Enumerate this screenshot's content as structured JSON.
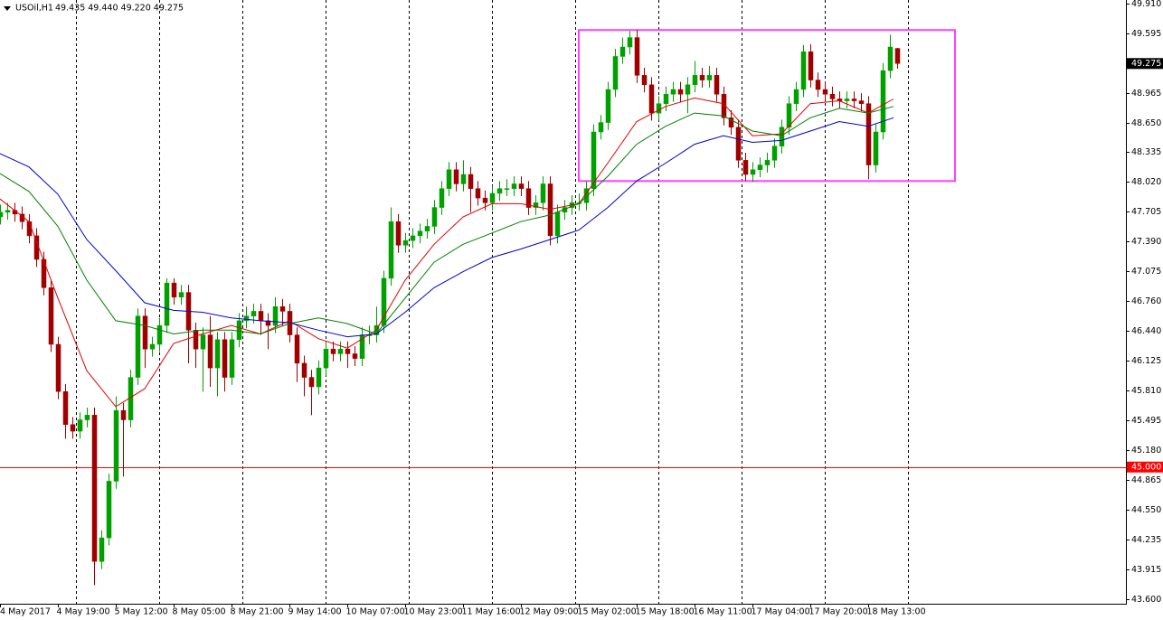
{
  "chart_data": {
    "type": "candlestick",
    "title": "USOil,H1",
    "ohlc_label": "49.435 49.440 49.220 49.275",
    "up_color": "#00a000",
    "down_color": "#a00000",
    "xlim": [
      0,
      311.25
    ],
    "ylim": [
      43.552,
      49.948
    ],
    "xticks": [
      {
        "value": 0,
        "label": "4 May 2017"
      },
      {
        "value": 16,
        "label": "4 May 19:00"
      },
      {
        "value": 32,
        "label": "5 May 12:00"
      },
      {
        "value": 48,
        "label": "8 May 05:00"
      },
      {
        "value": 64,
        "label": "8 May 21:00"
      },
      {
        "value": 80,
        "label": "9 May 14:00"
      },
      {
        "value": 96,
        "label": "10 May 07:00"
      },
      {
        "value": 112,
        "label": "10 May 23:00"
      },
      {
        "value": 128,
        "label": "11 May 16:00"
      },
      {
        "value": 144,
        "label": "12 May 09:00"
      },
      {
        "value": 160,
        "label": "15 May 02:00"
      },
      {
        "value": 176,
        "label": "15 May 18:00"
      },
      {
        "value": 192,
        "label": "16 May 11:00"
      },
      {
        "value": 208,
        "label": "17 May 04:00"
      },
      {
        "value": 224,
        "label": "17 May 20:00"
      },
      {
        "value": 240,
        "label": "18 May 13:00"
      }
    ],
    "xgrid": [
      21,
      44,
      67,
      90,
      113,
      136,
      159,
      182,
      205,
      228,
      251
    ],
    "yticks": [
      {
        "value": 49.91,
        "label": "49.910"
      },
      {
        "value": 49.595,
        "label": "49.595"
      },
      {
        "value": 48.965,
        "label": "48.965"
      },
      {
        "value": 48.65,
        "label": "48.650"
      },
      {
        "value": 48.335,
        "label": "48.335"
      },
      {
        "value": 48.02,
        "label": "48.020"
      },
      {
        "value": 47.705,
        "label": "47.705"
      },
      {
        "value": 47.39,
        "label": "47.390"
      },
      {
        "value": 47.075,
        "label": "47.075"
      },
      {
        "value": 46.76,
        "label": "46.760"
      },
      {
        "value": 46.44,
        "label": "46.440"
      },
      {
        "value": 46.125,
        "label": "46.125"
      },
      {
        "value": 45.81,
        "label": "45.810"
      },
      {
        "value": 45.495,
        "label": "45.495"
      },
      {
        "value": 45.18,
        "label": "45.180"
      },
      {
        "value": 44.865,
        "label": "44.865"
      },
      {
        "value": 44.55,
        "label": "44.550"
      },
      {
        "value": 44.235,
        "label": "44.235"
      },
      {
        "value": 43.915,
        "label": "43.915"
      },
      {
        "value": 43.6,
        "label": "43.600"
      }
    ],
    "hline": {
      "value": 45,
      "label": "45.000",
      "color": "#ff0000"
    },
    "last_price": {
      "value": 49.275,
      "label": "49.275"
    },
    "rectangle": {
      "xlim": [
        160,
        264
      ],
      "ylim": [
        48.03,
        49.63
      ],
      "color": "#ff40ff"
    },
    "x": [
      0,
      2,
      4,
      6,
      8,
      10,
      12,
      14,
      16,
      18,
      20,
      22,
      24,
      26,
      28,
      30,
      32,
      34,
      36,
      38,
      40,
      42,
      44,
      46,
      48,
      50,
      52,
      54,
      56,
      58,
      60,
      62,
      64,
      66,
      68,
      70,
      72,
      74,
      76,
      78,
      80,
      82,
      84,
      86,
      88,
      90,
      92,
      94,
      96,
      98,
      100,
      102,
      104,
      106,
      108,
      110,
      112,
      114,
      116,
      118,
      120,
      122,
      124,
      126,
      128,
      130,
      132,
      134,
      136,
      138,
      140,
      142,
      144,
      146,
      148,
      150,
      152,
      154,
      156,
      158,
      160,
      162,
      164,
      166,
      168,
      170,
      172,
      174,
      176,
      178,
      180,
      182,
      184,
      186,
      188,
      190,
      192,
      194,
      196,
      198,
      200,
      202,
      204,
      206,
      208,
      210,
      212,
      214,
      216,
      218,
      220,
      222,
      224,
      226,
      228,
      230,
      232,
      234,
      236,
      238,
      240,
      242,
      244,
      246,
      248
    ],
    "ohlc": [
      [
        47.65,
        47.78,
        47.57,
        47.7
      ],
      [
        47.7,
        47.8,
        47.62,
        47.72
      ],
      [
        47.72,
        47.8,
        47.6,
        47.68
      ],
      [
        47.68,
        47.76,
        47.52,
        47.6
      ],
      [
        47.6,
        47.68,
        47.37,
        47.45
      ],
      [
        47.45,
        47.53,
        47.12,
        47.2
      ],
      [
        47.2,
        47.28,
        46.82,
        46.9
      ],
      [
        46.9,
        46.98,
        46.22,
        46.3
      ],
      [
        46.3,
        46.38,
        45.72,
        45.8
      ],
      [
        45.8,
        45.88,
        45.3,
        45.45
      ],
      [
        45.45,
        45.53,
        45.3,
        45.38
      ],
      [
        45.38,
        45.58,
        45.3,
        45.5
      ],
      [
        45.5,
        45.63,
        45.42,
        45.55
      ],
      [
        45.55,
        45.63,
        43.75,
        44.0
      ],
      [
        44.0,
        44.33,
        43.92,
        44.25
      ],
      [
        44.25,
        44.93,
        44.17,
        44.85
      ],
      [
        44.85,
        45.75,
        44.77,
        45.6
      ],
      [
        45.6,
        45.68,
        44.9,
        45.5
      ],
      [
        45.5,
        46.03,
        45.42,
        45.95
      ],
      [
        45.95,
        46.68,
        45.87,
        46.6
      ],
      [
        46.6,
        46.68,
        46.05,
        46.25
      ],
      [
        46.25,
        46.38,
        46.17,
        46.3
      ],
      [
        46.3,
        46.58,
        46.22,
        46.5
      ],
      [
        46.5,
        47.0,
        46.42,
        46.95
      ],
      [
        46.95,
        47.0,
        46.72,
        46.8
      ],
      [
        46.8,
        46.93,
        46.72,
        46.85
      ],
      [
        46.85,
        46.93,
        46.1,
        46.45
      ],
      [
        46.45,
        46.53,
        46.05,
        46.25
      ],
      [
        46.25,
        46.48,
        45.8,
        46.4
      ],
      [
        46.4,
        46.6,
        45.85,
        46.05
      ],
      [
        46.05,
        46.43,
        45.75,
        46.35
      ],
      [
        46.35,
        46.43,
        45.8,
        45.95
      ],
      [
        45.95,
        46.43,
        45.87,
        46.35
      ],
      [
        46.35,
        46.63,
        46.27,
        46.55
      ],
      [
        46.55,
        46.7,
        46.47,
        46.6
      ],
      [
        46.6,
        46.73,
        46.52,
        46.65
      ],
      [
        46.65,
        46.73,
        46.4,
        46.55
      ],
      [
        46.55,
        46.63,
        46.25,
        46.5
      ],
      [
        46.5,
        46.8,
        46.42,
        46.7
      ],
      [
        46.7,
        46.78,
        46.5,
        46.65
      ],
      [
        46.65,
        46.73,
        46.32,
        46.4
      ],
      [
        46.4,
        46.48,
        45.9,
        46.1
      ],
      [
        46.1,
        46.18,
        45.75,
        45.95
      ],
      [
        45.95,
        46.03,
        45.55,
        45.85
      ],
      [
        45.85,
        46.13,
        45.77,
        46.05
      ],
      [
        46.05,
        46.33,
        45.97,
        46.25
      ],
      [
        46.25,
        46.33,
        46.12,
        46.2
      ],
      [
        46.2,
        46.33,
        46.12,
        46.25
      ],
      [
        46.25,
        46.33,
        46.05,
        46.2
      ],
      [
        46.2,
        46.28,
        46.07,
        46.15
      ],
      [
        46.15,
        46.48,
        46.07,
        46.4
      ],
      [
        46.4,
        46.5,
        46.3,
        46.4
      ],
      [
        46.4,
        46.7,
        46.32,
        46.5
      ],
      [
        46.5,
        47.08,
        46.42,
        47.0
      ],
      [
        47.0,
        47.75,
        46.92,
        47.6
      ],
      [
        47.6,
        47.68,
        47.27,
        47.35
      ],
      [
        47.35,
        47.48,
        47.27,
        47.4
      ],
      [
        47.4,
        47.53,
        47.32,
        47.45
      ],
      [
        47.45,
        47.58,
        47.37,
        47.5
      ],
      [
        47.5,
        47.63,
        47.42,
        47.55
      ],
      [
        47.55,
        47.83,
        47.47,
        47.75
      ],
      [
        47.75,
        48.03,
        47.67,
        47.95
      ],
      [
        47.95,
        48.23,
        47.87,
        48.15
      ],
      [
        48.15,
        48.23,
        47.92,
        48.0
      ],
      [
        48.0,
        48.25,
        47.92,
        48.1
      ],
      [
        48.1,
        48.18,
        47.7,
        47.95
      ],
      [
        47.95,
        48.03,
        47.77,
        47.85
      ],
      [
        47.85,
        47.93,
        47.72,
        47.8
      ],
      [
        47.8,
        47.98,
        47.72,
        47.9
      ],
      [
        47.9,
        48.03,
        47.82,
        47.95
      ],
      [
        47.95,
        48.05,
        47.87,
        47.95
      ],
      [
        47.95,
        48.08,
        47.87,
        48.0
      ],
      [
        48.0,
        48.08,
        47.87,
        47.95
      ],
      [
        47.95,
        48.03,
        47.67,
        47.75
      ],
      [
        47.75,
        47.88,
        47.67,
        47.8
      ],
      [
        47.8,
        48.08,
        47.72,
        48.0
      ],
      [
        48.0,
        48.08,
        47.35,
        47.45
      ],
      [
        47.45,
        47.78,
        47.37,
        47.7
      ],
      [
        47.7,
        47.83,
        47.62,
        47.75
      ],
      [
        47.75,
        47.88,
        47.67,
        47.8
      ],
      [
        47.8,
        47.9,
        47.72,
        47.8
      ],
      [
        47.8,
        48.03,
        47.72,
        47.95
      ],
      [
        47.95,
        48.63,
        47.87,
        48.55
      ],
      [
        48.55,
        48.73,
        48.47,
        48.65
      ],
      [
        48.65,
        49.08,
        48.57,
        49.0
      ],
      [
        49.0,
        49.43,
        48.92,
        49.35
      ],
      [
        49.35,
        49.55,
        49.27,
        49.45
      ],
      [
        49.45,
        49.62,
        49.37,
        49.55
      ],
      [
        49.55,
        49.63,
        49.07,
        49.15
      ],
      [
        49.15,
        49.23,
        48.97,
        49.05
      ],
      [
        49.05,
        49.13,
        48.67,
        48.75
      ],
      [
        48.75,
        48.93,
        48.67,
        48.85
      ],
      [
        48.85,
        49.03,
        48.77,
        48.95
      ],
      [
        48.95,
        49.08,
        48.87,
        49.0
      ],
      [
        49.0,
        49.08,
        48.87,
        48.95
      ],
      [
        48.95,
        49.13,
        48.75,
        49.05
      ],
      [
        49.05,
        49.3,
        48.97,
        49.15
      ],
      [
        49.15,
        49.23,
        49.02,
        49.1
      ],
      [
        49.1,
        49.25,
        49.02,
        49.15
      ],
      [
        49.15,
        49.23,
        48.87,
        48.95
      ],
      [
        48.95,
        49.03,
        48.62,
        48.7
      ],
      [
        48.7,
        48.78,
        48.52,
        48.6
      ],
      [
        48.6,
        48.68,
        48.17,
        48.25
      ],
      [
        48.25,
        48.33,
        48.03,
        48.1
      ],
      [
        48.1,
        48.23,
        48.02,
        48.15
      ],
      [
        48.15,
        48.28,
        48.07,
        48.2
      ],
      [
        48.2,
        48.33,
        48.12,
        48.25
      ],
      [
        48.25,
        48.48,
        48.17,
        48.4
      ],
      [
        48.4,
        48.68,
        48.32,
        48.6
      ],
      [
        48.6,
        48.93,
        48.52,
        48.85
      ],
      [
        48.85,
        49.08,
        48.77,
        49.0
      ],
      [
        49.0,
        49.47,
        48.92,
        49.4
      ],
      [
        49.4,
        49.48,
        49.02,
        49.1
      ],
      [
        49.1,
        49.18,
        48.92,
        49.0
      ],
      [
        49.0,
        49.08,
        48.87,
        48.95
      ],
      [
        48.95,
        49.03,
        48.82,
        48.9
      ],
      [
        48.9,
        48.98,
        48.8,
        48.88
      ],
      [
        48.88,
        48.98,
        48.8,
        48.9
      ],
      [
        48.9,
        48.98,
        48.8,
        48.88
      ],
      [
        48.88,
        48.96,
        48.77,
        48.85
      ],
      [
        48.85,
        48.93,
        48.05,
        48.2
      ],
      [
        48.2,
        48.63,
        48.12,
        48.55
      ],
      [
        48.55,
        49.28,
        48.47,
        49.2
      ],
      [
        49.2,
        49.58,
        49.12,
        49.45
      ],
      [
        49.435,
        49.44,
        49.22,
        49.275
      ]
    ],
    "ma_x": [
      0,
      8,
      16,
      24,
      32,
      40,
      48,
      56,
      64,
      72,
      80,
      88,
      96,
      104,
      112,
      120,
      128,
      136,
      144,
      152,
      160,
      168,
      176,
      184,
      192,
      200,
      208,
      216,
      224,
      232,
      240,
      247
    ],
    "ma_lines": [
      {
        "color": "#e00000",
        "values": [
          47.84,
          47.6,
          46.79,
          46.02,
          45.64,
          45.83,
          46.31,
          46.41,
          46.5,
          46.41,
          46.55,
          46.36,
          46.26,
          46.45,
          46.98,
          47.36,
          47.65,
          47.79,
          47.79,
          47.73,
          47.79,
          48.22,
          48.66,
          48.82,
          48.91,
          48.85,
          48.51,
          48.53,
          48.85,
          48.88,
          48.75,
          48.9
        ]
      },
      {
        "color": "#008000",
        "values": [
          48.11,
          47.92,
          47.55,
          46.98,
          46.55,
          46.5,
          46.41,
          46.45,
          46.45,
          46.41,
          46.52,
          46.58,
          46.52,
          46.41,
          46.79,
          47.17,
          47.36,
          47.48,
          47.6,
          47.67,
          47.79,
          48.08,
          48.42,
          48.61,
          48.75,
          48.72,
          48.56,
          48.51,
          48.7,
          48.8,
          48.75,
          48.82
        ]
      },
      {
        "color": "#0000d0",
        "values": [
          48.32,
          48.18,
          47.89,
          47.41,
          47.08,
          46.74,
          46.66,
          46.64,
          46.58,
          46.55,
          46.53,
          46.45,
          46.38,
          46.41,
          46.64,
          46.9,
          47.07,
          47.22,
          47.31,
          47.41,
          47.51,
          47.75,
          48.03,
          48.22,
          48.42,
          48.51,
          48.44,
          48.46,
          48.56,
          48.66,
          48.61,
          48.7
        ]
      }
    ]
  }
}
